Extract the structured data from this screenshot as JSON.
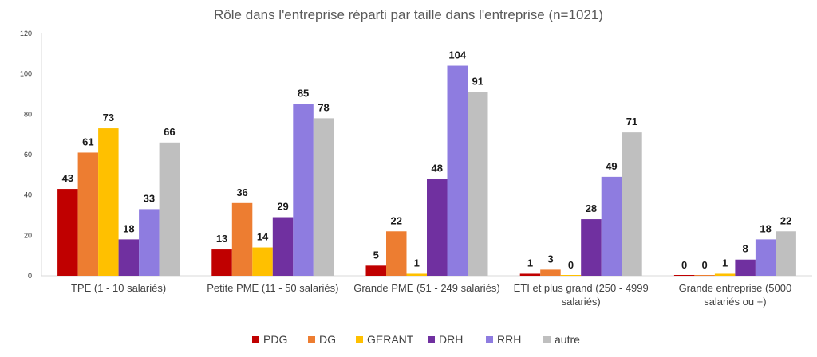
{
  "chart_data": {
    "type": "bar",
    "title": "Rôle dans l'entreprise réparti par taille dans l'entreprise (n=1021)",
    "xlabel": "",
    "ylabel": "",
    "ylim": [
      0,
      120
    ],
    "yticks": [
      "0",
      "20",
      "40",
      "60",
      "80",
      "100",
      "120"
    ],
    "grid": false,
    "legend_position": "bottom",
    "categories": [
      [
        "TPE (1 - 10 salariés)"
      ],
      [
        "Petite PME (11 - 50 salariés)"
      ],
      [
        "Grande PME (51 - 249 salariés)"
      ],
      [
        "ETI et plus grand (250 - 4999",
        "salariés)"
      ],
      [
        "Grande entreprise (5000",
        "salariés ou +)"
      ]
    ],
    "series": [
      {
        "name": "PDG",
        "color": "#C00000",
        "values": [
          43,
          13,
          5,
          1,
          0
        ]
      },
      {
        "name": "DG",
        "color": "#ED7D31",
        "values": [
          61,
          36,
          22,
          3,
          0
        ]
      },
      {
        "name": "GERANT",
        "color": "#FFC000",
        "values": [
          73,
          14,
          1,
          0,
          1
        ]
      },
      {
        "name": "DRH",
        "color": "#7030A0",
        "values": [
          18,
          29,
          48,
          28,
          8
        ]
      },
      {
        "name": "RRH",
        "color": "#8E7CE0",
        "values": [
          33,
          85,
          104,
          49,
          18
        ]
      },
      {
        "name": "autre",
        "color": "#BFBFBF",
        "values": [
          66,
          78,
          91,
          71,
          22
        ]
      }
    ]
  }
}
